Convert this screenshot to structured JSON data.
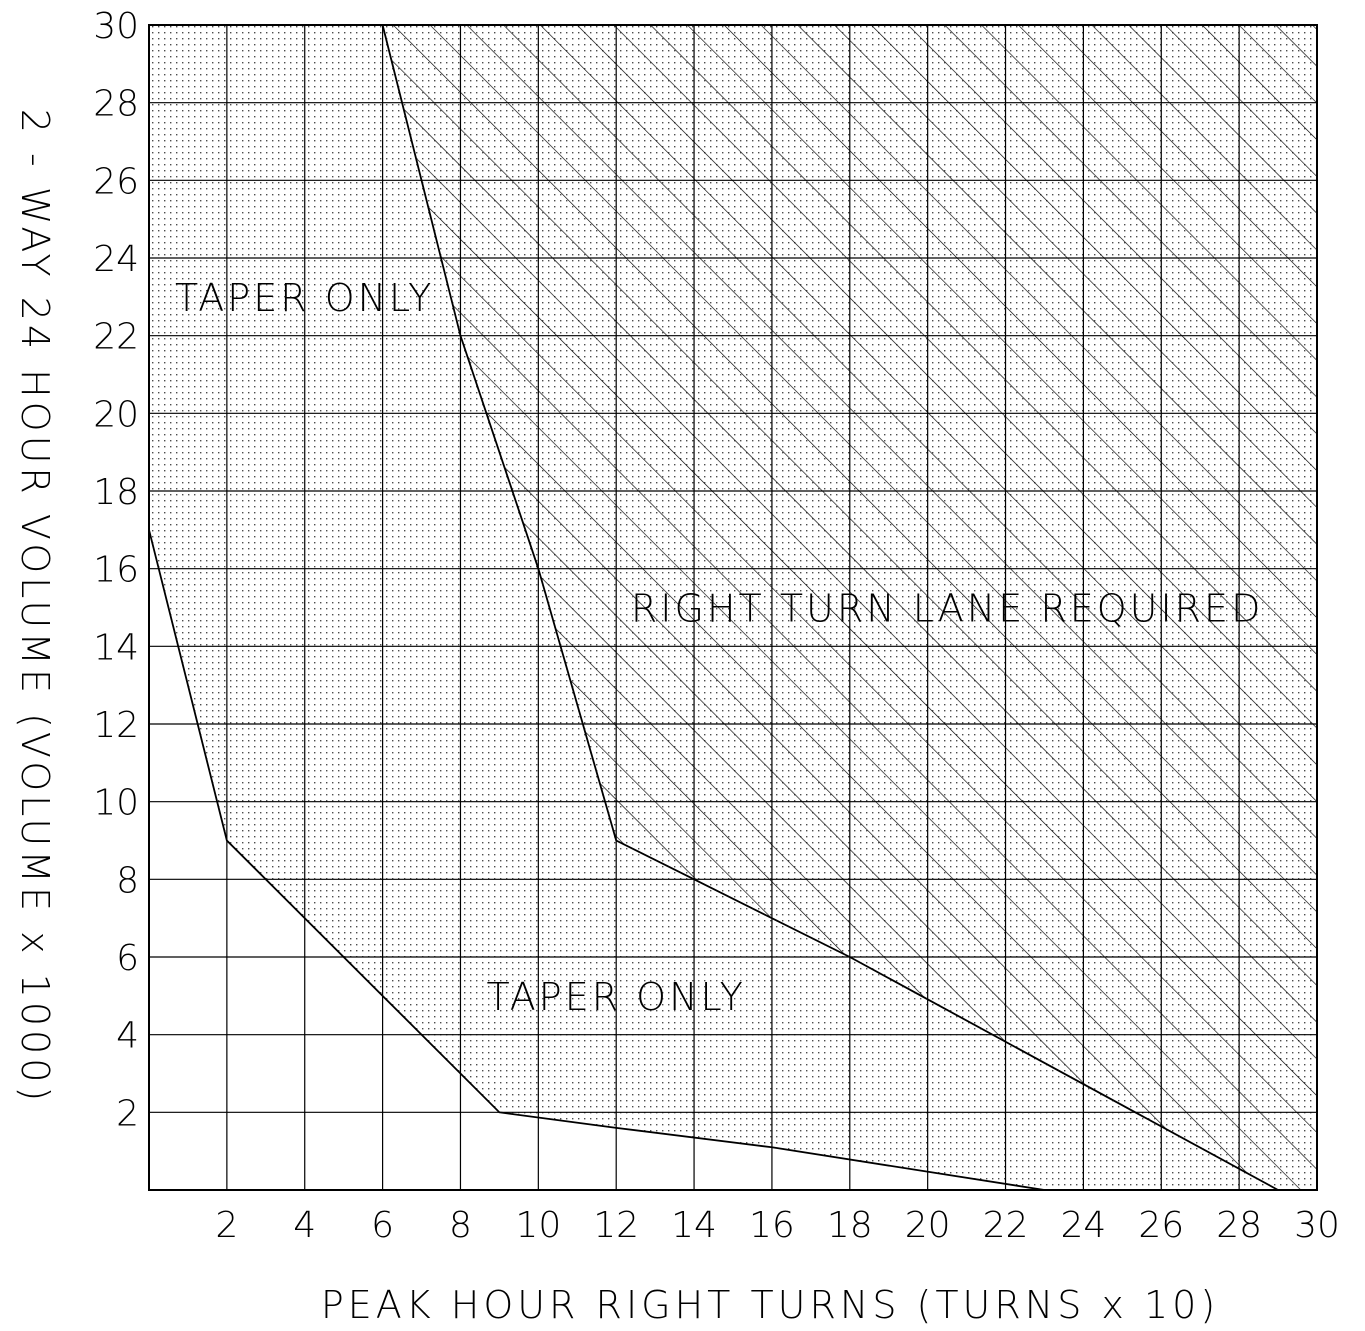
{
  "chart_data": {
    "type": "area",
    "xlabel": "PEAK HOUR RIGHT TURNS (TURNS x 10)",
    "ylabel": "2 - WAY 24 HOUR VOLUME (VOLUME x 1000)",
    "xlim": [
      0,
      30
    ],
    "ylim": [
      0,
      30
    ],
    "grid": true,
    "x_ticks": [
      "2",
      "4",
      "6",
      "8",
      "10",
      "12",
      "14",
      "16",
      "18",
      "20",
      "22",
      "24",
      "26",
      "28",
      "30"
    ],
    "y_ticks": [
      "2",
      "4",
      "6",
      "8",
      "10",
      "12",
      "14",
      "16",
      "18",
      "20",
      "22",
      "24",
      "26",
      "28",
      "30"
    ],
    "boundaries": [
      {
        "name": "lower",
        "points": [
          [
            0,
            17
          ],
          [
            2,
            9
          ],
          [
            6,
            5
          ],
          [
            9,
            2
          ],
          [
            12,
            1.6
          ],
          [
            16,
            1.1
          ],
          [
            23,
            0
          ]
        ]
      },
      {
        "name": "upper",
        "points": [
          [
            6,
            30
          ],
          [
            8,
            22
          ],
          [
            10,
            16
          ],
          [
            12,
            9
          ],
          [
            14,
            8
          ],
          [
            18,
            6
          ],
          [
            29,
            0
          ]
        ]
      }
    ],
    "regions": [
      {
        "label": "TAPER ONLY",
        "at": [
          4,
          23
        ],
        "fill": "dotted"
      },
      {
        "label": "TAPER ONLY",
        "at": [
          12,
          5
        ],
        "fill": "dotted"
      },
      {
        "label": "RIGHT TURN LANE REQUIRED",
        "at": [
          20.5,
          15
        ],
        "fill": "hatched"
      }
    ],
    "colors": {
      "line": "#000000",
      "background": "#ffffff"
    }
  }
}
